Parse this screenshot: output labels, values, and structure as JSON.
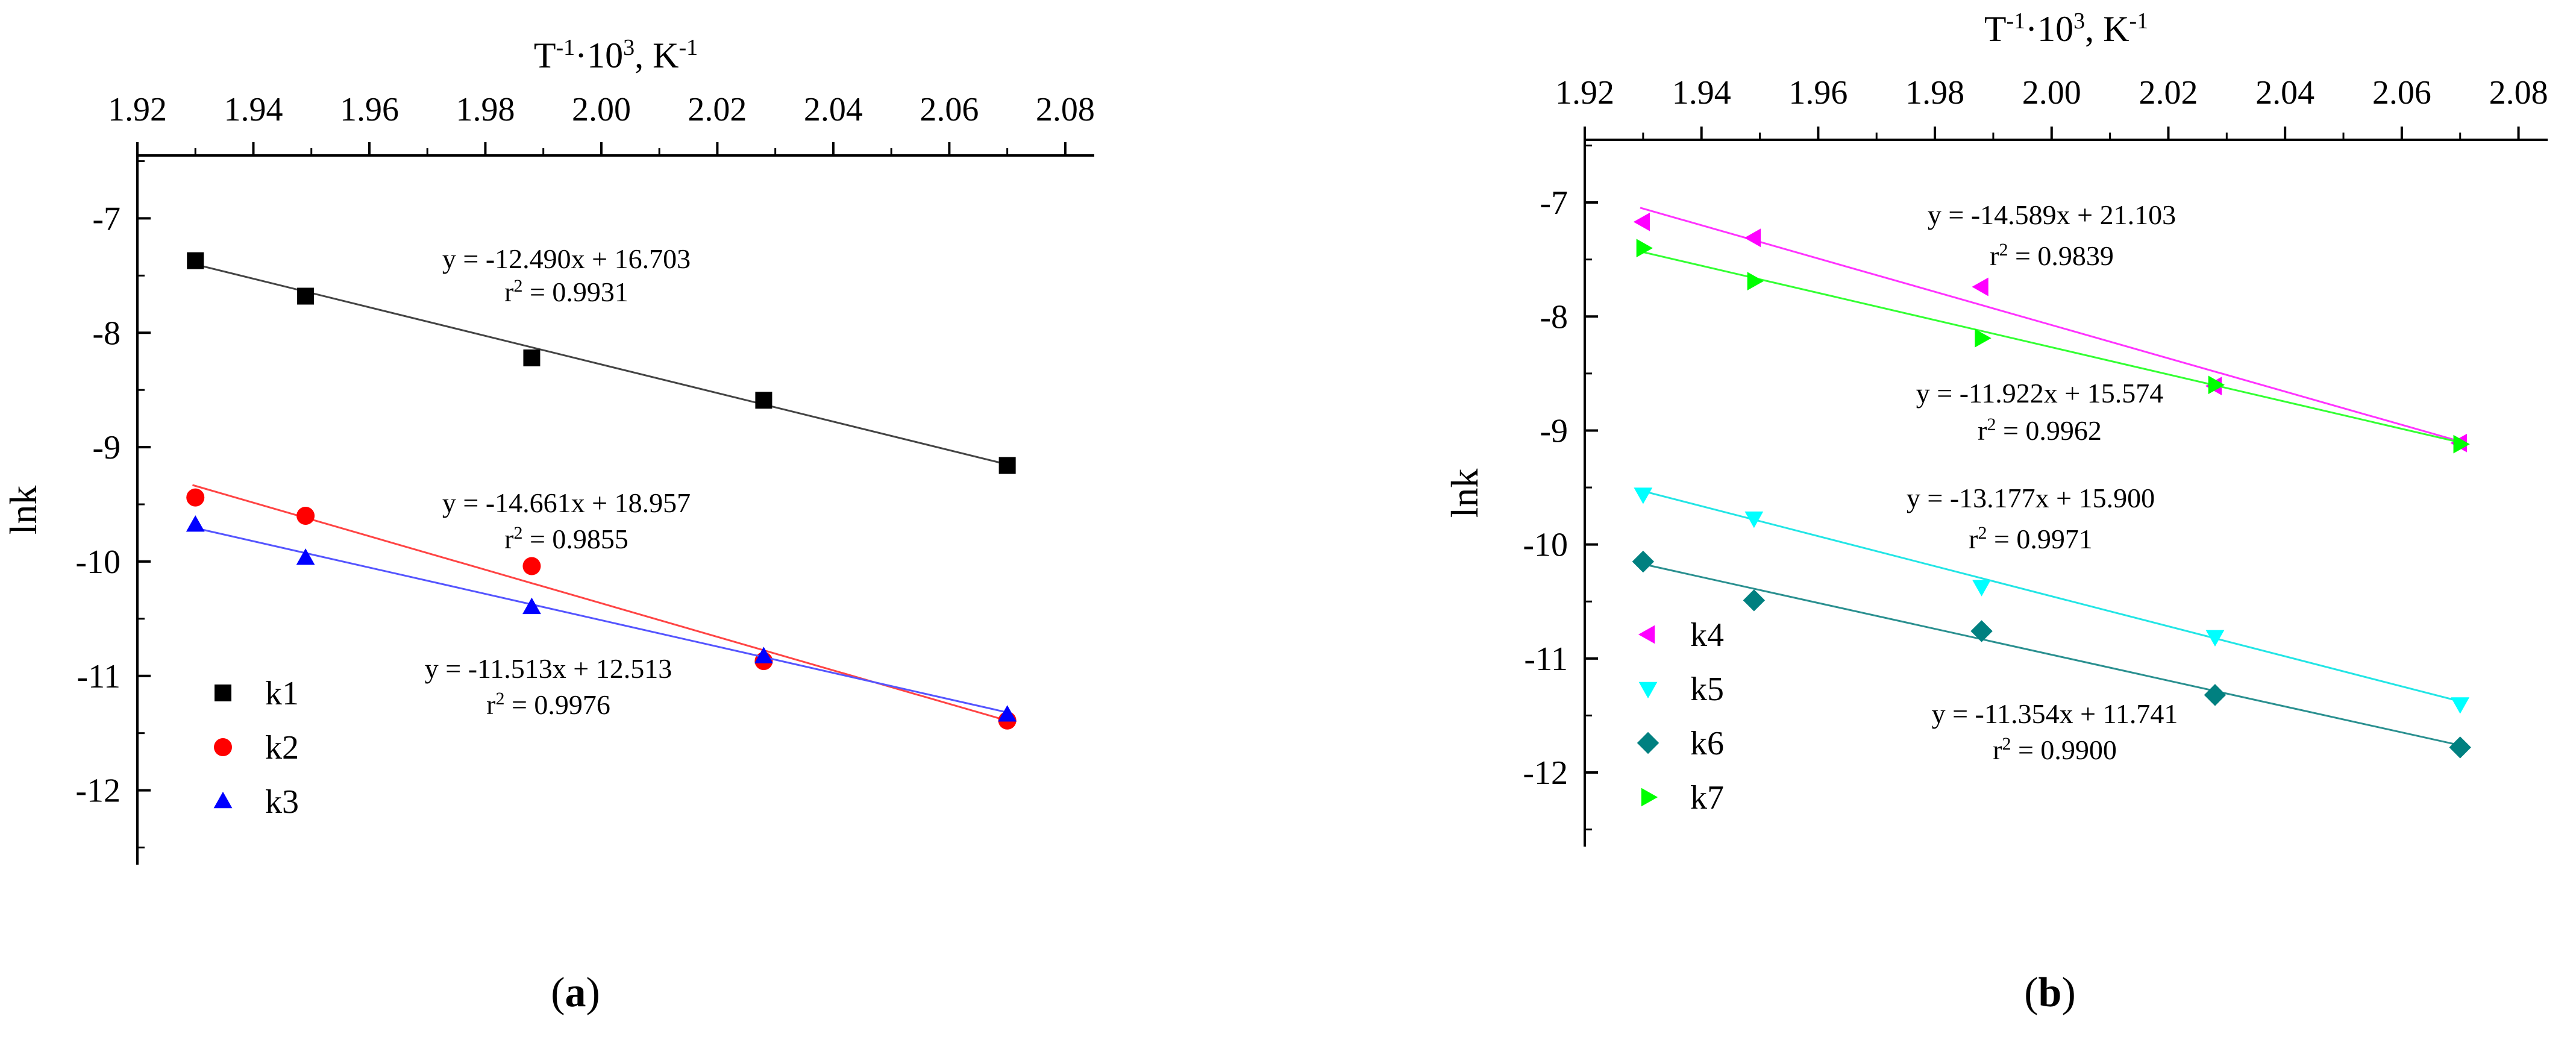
{
  "chart_data": [
    {
      "type": "scatter",
      "panel_label": "(a)",
      "panel_label_bold": "a",
      "xlabel": "T⁻¹·10³, K⁻¹",
      "ylabel": "lnk",
      "xaxis_position": "top",
      "xlim": [
        1.92,
        2.085
      ],
      "ylim": [
        -12.65,
        -6.45
      ],
      "xticks": [
        "1.92",
        "1.94",
        "1.96",
        "1.98",
        "2.00",
        "2.02",
        "2.04",
        "2.06",
        "2.08"
      ],
      "yticks": [
        "-7",
        "-8",
        "-9",
        "-10",
        "-11",
        "-12"
      ],
      "grid": false,
      "legend_position": "bottom-left",
      "series": [
        {
          "name": "k1",
          "marker": "square",
          "color": "#000000",
          "line_color": "#444444",
          "x": [
            1.93,
            1.949,
            1.988,
            2.028,
            2.07
          ],
          "y": [
            -7.37,
            -7.68,
            -8.22,
            -8.59,
            -9.16
          ],
          "fit": {
            "slope": -12.49,
            "intercept": 16.703
          },
          "equation": "y = -12.490x + 16.703",
          "r2": "0.9931"
        },
        {
          "name": "k2",
          "marker": "circle",
          "color": "#ff0000",
          "line_color": "#ff4444",
          "x": [
            1.93,
            1.949,
            1.988,
            2.028,
            2.07
          ],
          "y": [
            -9.44,
            -9.6,
            -10.04,
            -10.87,
            -11.39
          ],
          "fit": {
            "slope": -14.661,
            "intercept": 18.957
          },
          "equation": "y = -14.661x + 18.957",
          "r2": "0.9855"
        },
        {
          "name": "k3",
          "marker": "triangle-up",
          "color": "#0000ff",
          "line_color": "#5555ff",
          "x": [
            1.93,
            1.949,
            1.988,
            2.028,
            2.07
          ],
          "y": [
            -9.68,
            -9.97,
            -10.4,
            -10.83,
            -11.34
          ],
          "fit": {
            "slope": -11.513,
            "intercept": 12.513
          },
          "equation": "y = -11.513x + 12.513",
          "r2": "0.9976"
        }
      ]
    },
    {
      "type": "scatter",
      "panel_label": "(b)",
      "panel_label_bold": "b",
      "xlabel": "T⁻¹·10³, K⁻¹",
      "ylabel": "lnk",
      "xaxis_position": "top",
      "xlim": [
        1.92,
        2.085
      ],
      "ylim": [
        -12.65,
        -6.45
      ],
      "xticks": [
        "1.92",
        "1.94",
        "1.96",
        "1.98",
        "2.00",
        "2.02",
        "2.04",
        "2.06",
        "2.08"
      ],
      "yticks": [
        "-7",
        "-8",
        "-9",
        "-10",
        "-11",
        "-12"
      ],
      "grid": false,
      "legend_position": "bottom-left",
      "series": [
        {
          "name": "k4",
          "marker": "triangle-left",
          "color": "#ff00ff",
          "line_color": "#ff33ff",
          "x": [
            1.93,
            1.949,
            1.988,
            2.028,
            2.07
          ],
          "y": [
            -7.17,
            -7.31,
            -7.74,
            -8.61,
            -9.11
          ],
          "fit": {
            "slope": -14.589,
            "intercept": 21.103
          },
          "equation": "y = -14.589x + 21.103",
          "r2": "0.9839"
        },
        {
          "name": "k5",
          "marker": "triangle-down",
          "color": "#00ffff",
          "line_color": "#22e5e5",
          "x": [
            1.93,
            1.949,
            1.988,
            2.028,
            2.07
          ],
          "y": [
            -9.56,
            -9.77,
            -10.37,
            -10.81,
            -11.4
          ],
          "fit": {
            "slope": -13.177,
            "intercept": 15.9
          },
          "equation": "y = -13.177x + 15.900",
          "r2": "0.9971"
        },
        {
          "name": "k6",
          "marker": "diamond",
          "color": "#008080",
          "line_color": "#2a9090",
          "x": [
            1.93,
            1.949,
            1.988,
            2.028,
            2.07
          ],
          "y": [
            -10.15,
            -10.49,
            -10.76,
            -11.32,
            -11.78
          ],
          "fit": {
            "slope": -11.354,
            "intercept": 11.741
          },
          "equation": "y = -11.354x + 11.741",
          "r2": "0.9900"
        },
        {
          "name": "k7",
          "marker": "triangle-right",
          "color": "#00ff00",
          "line_color": "#33ff33",
          "x": [
            1.93,
            1.949,
            1.988,
            2.028,
            2.07
          ],
          "y": [
            -7.4,
            -7.69,
            -8.19,
            -8.6,
            -9.12
          ],
          "fit": {
            "slope": -11.922,
            "intercept": 15.574
          },
          "equation": "y = -11.922x + 15.574",
          "r2": "0.9962"
        }
      ]
    }
  ]
}
